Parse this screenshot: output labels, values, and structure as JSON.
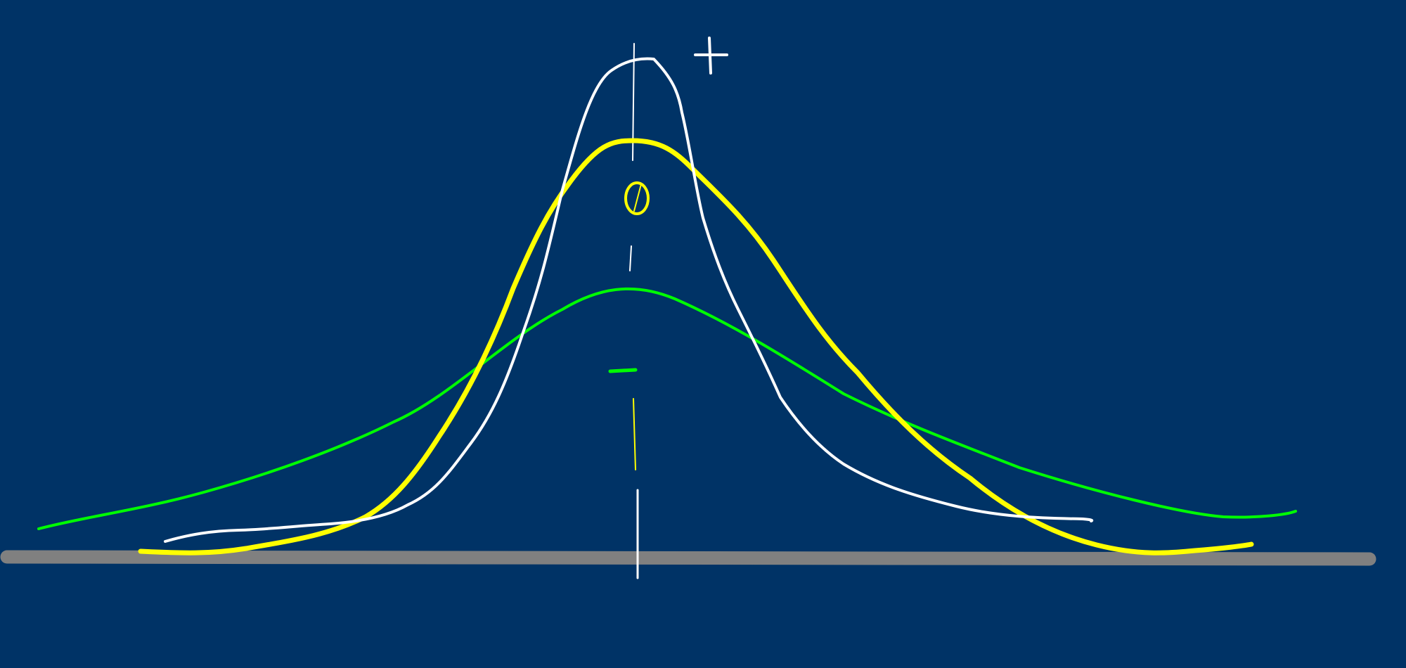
{
  "labels": {
    "plus": "+",
    "zero": "0",
    "minus": "−"
  },
  "colors": {
    "background": "#003366",
    "axis": "#808080",
    "white_curve": "#ffffff",
    "yellow_curve": "#ffff00",
    "green_curve": "#00ff00"
  },
  "curves": [
    {
      "id": "narrow",
      "color_key": "white_curve"
    },
    {
      "id": "medium",
      "color_key": "yellow_curve"
    },
    {
      "id": "wide",
      "color_key": "green_curve"
    }
  ]
}
